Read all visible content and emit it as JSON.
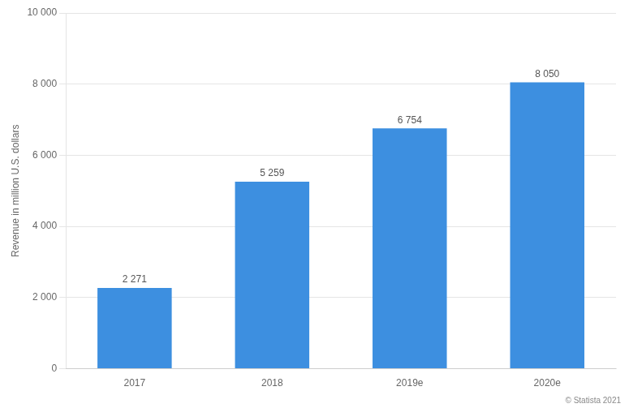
{
  "chart_data": {
    "type": "bar",
    "categories": [
      "2017",
      "2018",
      "2019e",
      "2020e"
    ],
    "values": [
      2271,
      5259,
      6754,
      8050
    ],
    "value_labels": [
      "2 271",
      "5 259",
      "6 754",
      "8 050"
    ],
    "data_labels": true,
    "color": "#3d8fe0",
    "ylabel": "Revenue in million U.S. dollars",
    "ylim": [
      0,
      10000
    ],
    "yticks": [
      0,
      {
        "value": 2000,
        "label": "2 000"
      },
      {
        "value": 4000,
        "label": "4 000"
      },
      {
        "value": 6000,
        "label": "6 000"
      },
      {
        "value": 8000,
        "label": "8 000"
      },
      {
        "value": 10000,
        "label": "10 000"
      }
    ],
    "grid": true,
    "annotations": [
      "© Statista 2021"
    ]
  }
}
